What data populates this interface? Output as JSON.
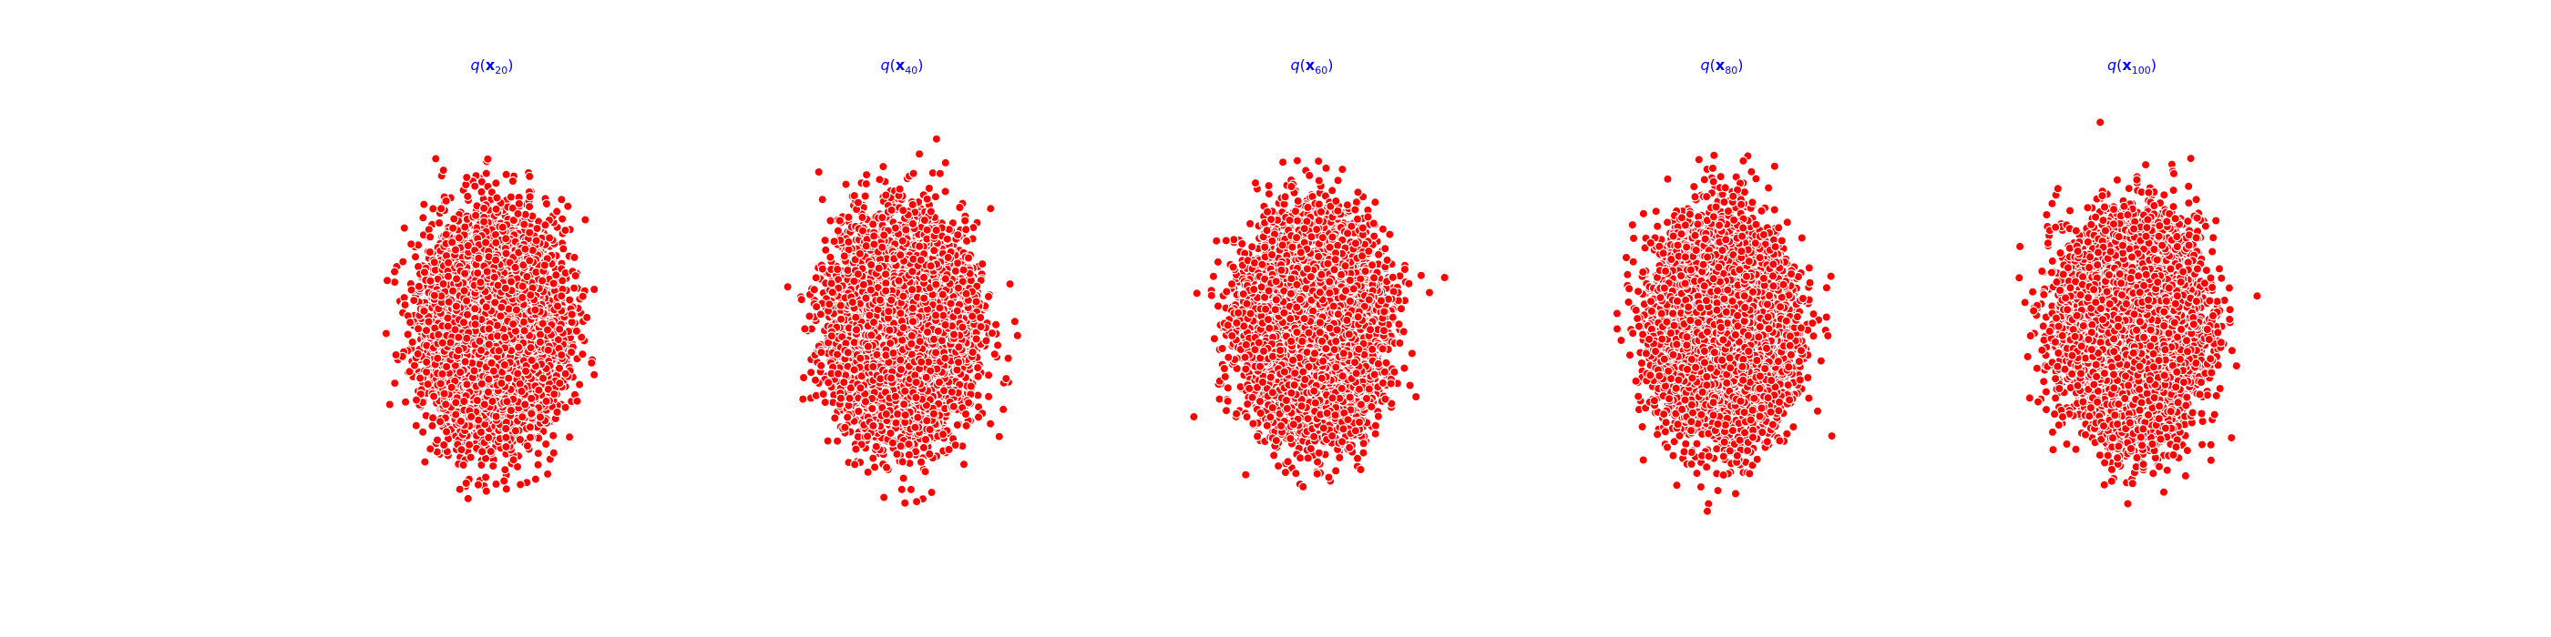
{
  "figure": {
    "background": "#ffffff",
    "axes_visible": false
  },
  "chart_data": [
    {
      "type": "scatter",
      "title": "q(x20)",
      "title_parts": {
        "func": "q",
        "open": "(",
        "var": "x",
        "sub": "20",
        "close": ")"
      },
      "title_color": "#0000ff",
      "point_color": "#ff0000",
      "edge_color": "#ffffff",
      "n_points": 10000,
      "distribution": {
        "mean": [
          0,
          0
        ],
        "std": [
          1,
          1
        ]
      },
      "xlim": [
        -5.5,
        5.5
      ],
      "ylim": [
        -5,
        5
      ],
      "grid": false,
      "seed": 20
    },
    {
      "type": "scatter",
      "title": "q(x40)",
      "title_parts": {
        "func": "q",
        "open": "(",
        "var": "x",
        "sub": "40",
        "close": ")"
      },
      "title_color": "#0000ff",
      "point_color": "#ff0000",
      "edge_color": "#ffffff",
      "n_points": 10000,
      "distribution": {
        "mean": [
          0,
          0
        ],
        "std": [
          1,
          1
        ]
      },
      "xlim": [
        -5.5,
        5.5
      ],
      "ylim": [
        -5,
        5
      ],
      "grid": false,
      "seed": 40
    },
    {
      "type": "scatter",
      "title": "q(x60)",
      "title_parts": {
        "func": "q",
        "open": "(",
        "var": "x",
        "sub": "60",
        "close": ")"
      },
      "title_color": "#0000ff",
      "point_color": "#ff0000",
      "edge_color": "#ffffff",
      "n_points": 10000,
      "distribution": {
        "mean": [
          0,
          0
        ],
        "std": [
          1,
          1
        ]
      },
      "xlim": [
        -5.5,
        5.5
      ],
      "ylim": [
        -5,
        5
      ],
      "grid": false,
      "seed": 60
    },
    {
      "type": "scatter",
      "title": "q(x80)",
      "title_parts": {
        "func": "q",
        "open": "(",
        "var": "x",
        "sub": "80",
        "close": ")"
      },
      "title_color": "#0000ff",
      "point_color": "#ff0000",
      "edge_color": "#ffffff",
      "n_points": 10000,
      "distribution": {
        "mean": [
          0,
          0
        ],
        "std": [
          1,
          1
        ]
      },
      "xlim": [
        -5.5,
        5.5
      ],
      "ylim": [
        -5,
        5
      ],
      "grid": false,
      "seed": 80
    },
    {
      "type": "scatter",
      "title": "q(x100)",
      "title_parts": {
        "func": "q",
        "open": "(",
        "var": "x",
        "sub": "100",
        "close": ")"
      },
      "title_color": "#0000ff",
      "point_color": "#ff0000",
      "edge_color": "#ffffff",
      "n_points": 10000,
      "distribution": {
        "mean": [
          0,
          0
        ],
        "std": [
          1,
          1
        ]
      },
      "xlim": [
        -5.5,
        5.5
      ],
      "ylim": [
        -5,
        5
      ],
      "grid": false,
      "seed": 100
    }
  ]
}
